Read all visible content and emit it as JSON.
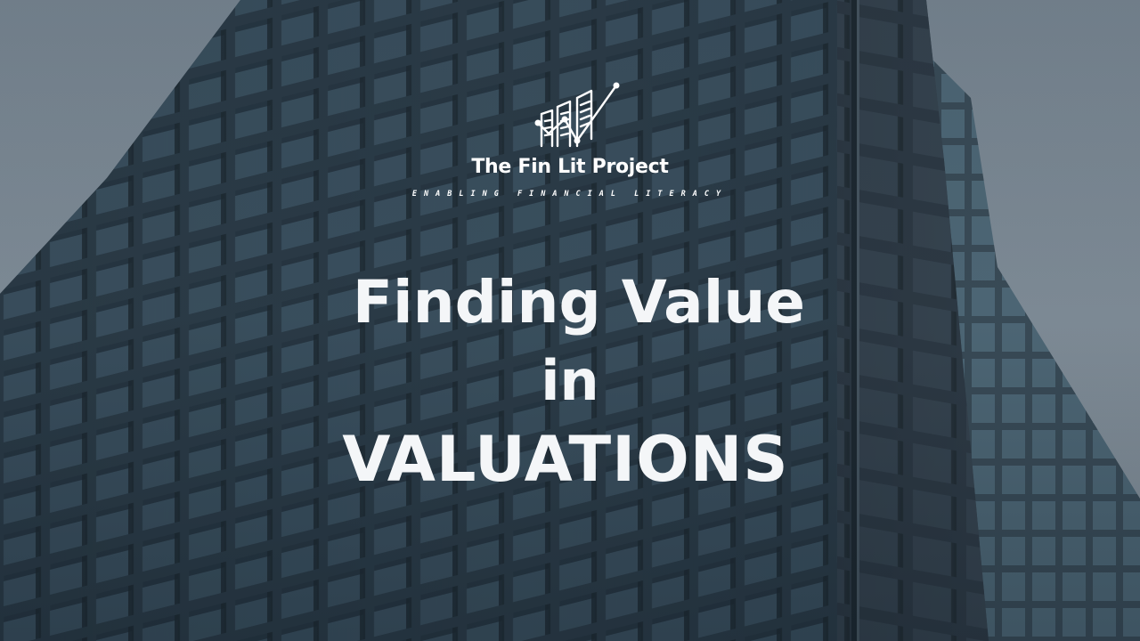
{
  "brand": {
    "name": "The Fin Lit Project",
    "tagline": "ENABLING FINANCIAL LITERACY",
    "logo_icon": "rising-bar-chart-icon",
    "color": "#ffffff"
  },
  "headline": {
    "line1": "Finding Value",
    "line2": "in",
    "line3": "VALUATIONS",
    "color": "#f4f6f8"
  },
  "background": {
    "subject": "building-facade-image",
    "tone": "#3a4a56"
  }
}
